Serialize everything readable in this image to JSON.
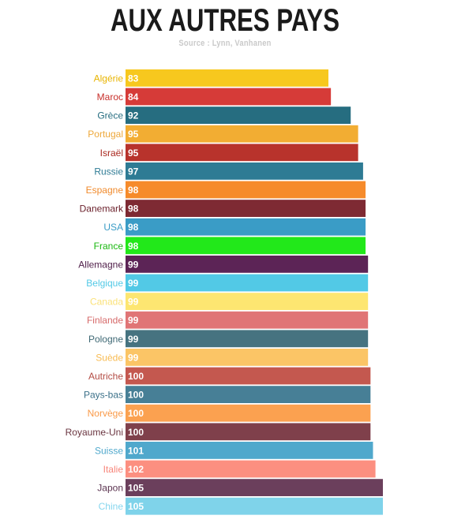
{
  "title": "AUX AUTRES PAYS",
  "source": "Source : Lynn, Vanhanen",
  "chart_data": {
    "type": "bar",
    "orientation": "horizontal",
    "title": "AUX AUTRES PAYS",
    "subtitle": "Source : Lynn, Vanhanen",
    "xlabel": "",
    "ylabel": "",
    "grid": false,
    "categories": [
      "Algérie",
      "Maroc",
      "Grèce",
      "Portugal",
      "Israël",
      "Russie",
      "Espagne",
      "Danemark",
      "USA",
      "France",
      "Allemagne",
      "Belgique",
      "Canada",
      "Finlande",
      "Pologne",
      "Suède",
      "Autriche",
      "Pays-bas",
      "Norvège",
      "Royaume-Uni",
      "Suisse",
      "Italie",
      "Japon",
      "Chine"
    ],
    "values": [
      83,
      84,
      92,
      95,
      95,
      97,
      98,
      98,
      98,
      98,
      99,
      99,
      99,
      99,
      99,
      99,
      100,
      100,
      100,
      100,
      101,
      102,
      105,
      105
    ],
    "colors": [
      "#f7c81e",
      "#d63b38",
      "#266d80",
      "#f2ad33",
      "#b8332c",
      "#2e7b94",
      "#f68b2b",
      "#7e2a33",
      "#3a9cc6",
      "#22e81a",
      "#5c2456",
      "#52c9e6",
      "#fde671",
      "#e07576",
      "#467380",
      "#fbc566",
      "#c4584f",
      "#477f96",
      "#fba150",
      "#7f404b",
      "#4fa8cc",
      "#fc8f80",
      "#6b3f5c",
      "#7fd3ea"
    ],
    "label_colors": [
      "#e8b400",
      "#c8302b",
      "#266d80",
      "#eea83a",
      "#a9281f",
      "#2e7b94",
      "#f08a2c",
      "#6a1f2a",
      "#3a9cc6",
      "#1ab810",
      "#4e1d48",
      "#52c9e6",
      "#fbe27a",
      "#d66a6a",
      "#3e6874",
      "#f8bb52",
      "#b34c44",
      "#3c7189",
      "#fa9a48",
      "#6a3540",
      "#4fa8cc",
      "#f7857a",
      "#5b3350",
      "#86d6ee"
    ],
    "xlim": [
      0,
      105
    ]
  }
}
